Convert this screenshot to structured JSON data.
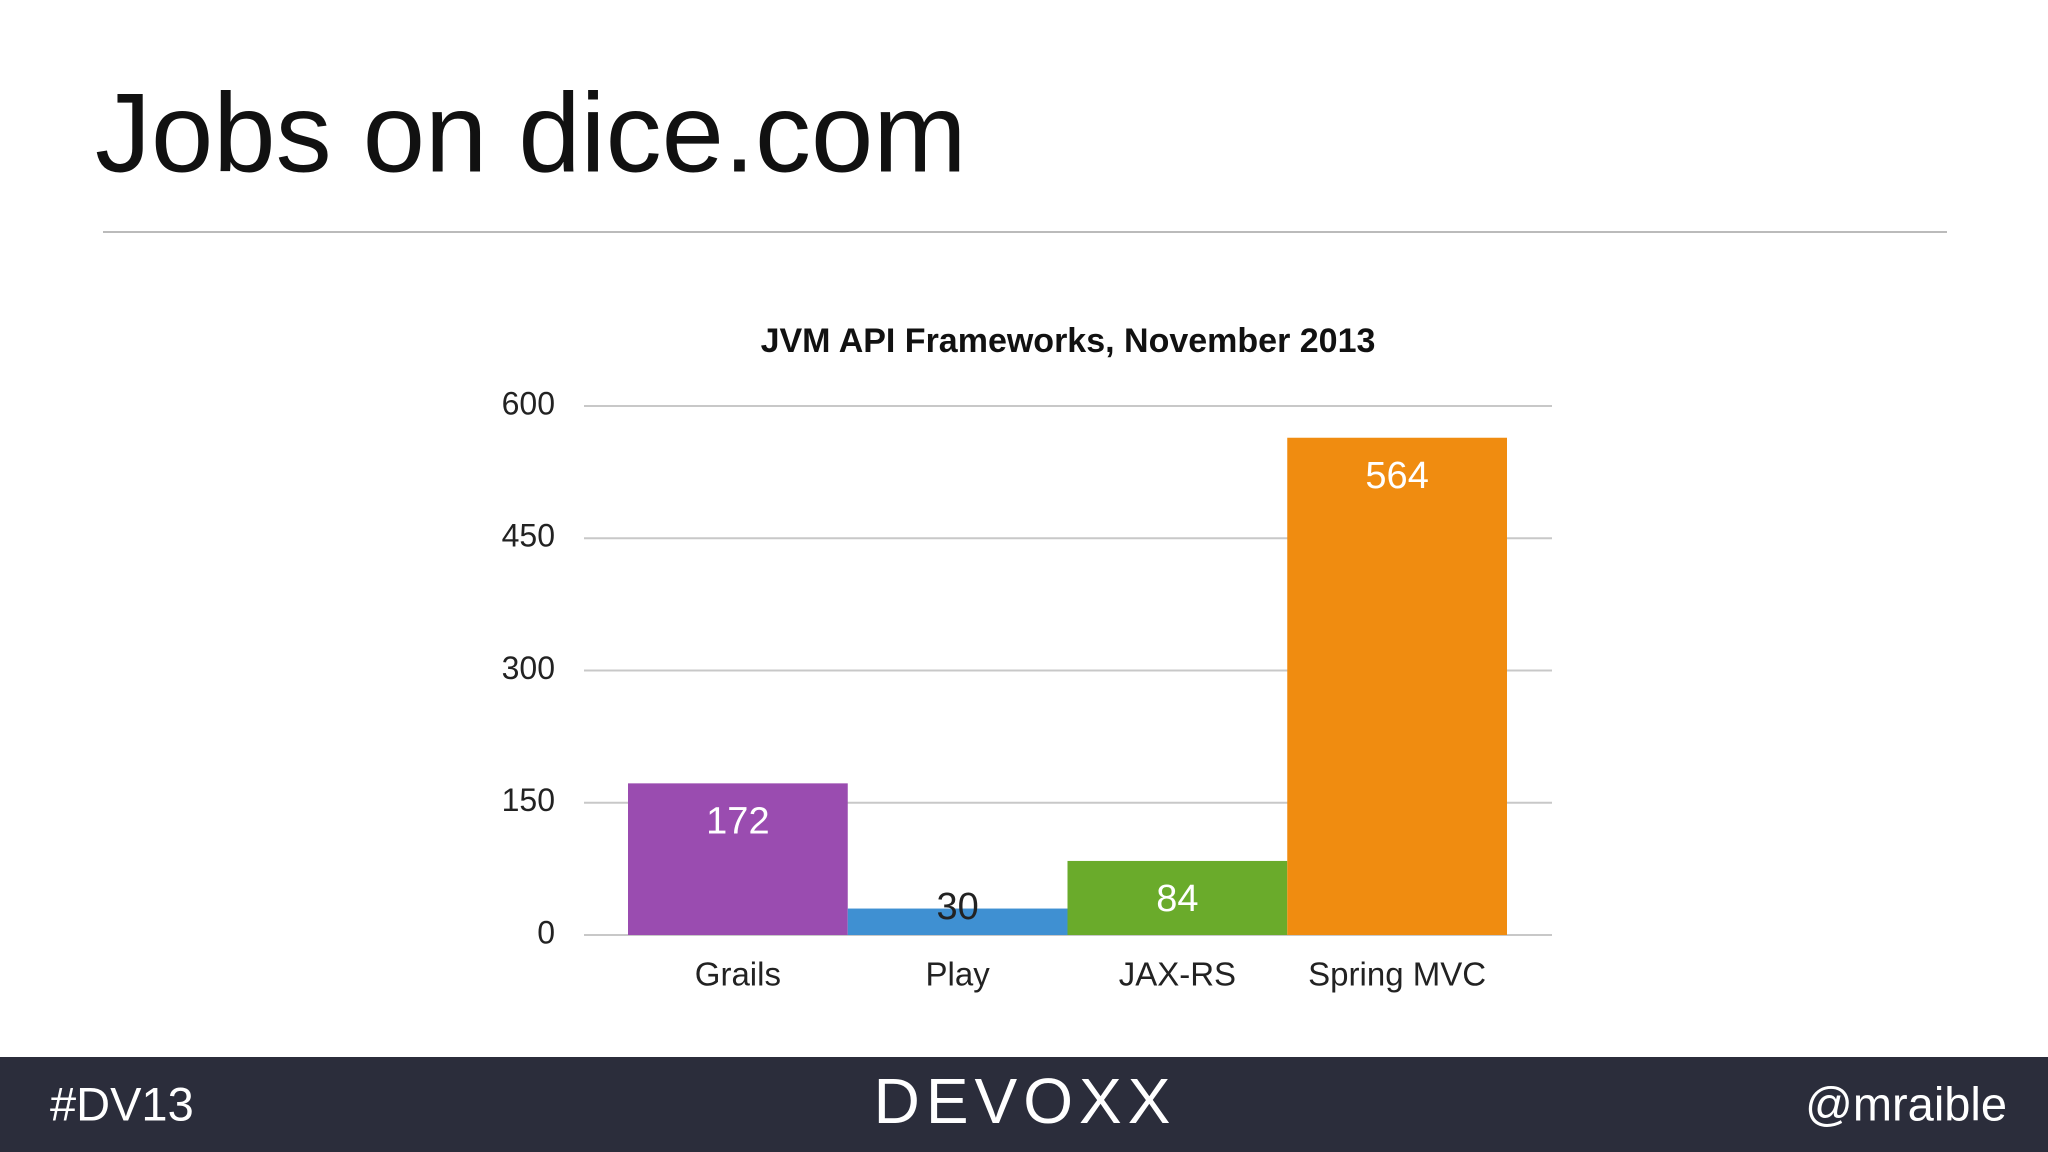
{
  "slide": {
    "title": "Jobs on dice.com",
    "footer_left": "#DV13",
    "logo": "DEVOXX",
    "footer_right": "@mraible"
  },
  "chart_data": {
    "type": "bar",
    "title": "JVM API Frameworks, November 2013",
    "categories": [
      "Grails",
      "Play",
      "JAX-RS",
      "Spring MVC"
    ],
    "values": [
      172,
      30,
      84,
      564
    ],
    "colors": [
      "#9a4cb0",
      "#3f90d2",
      "#6aab2b",
      "#f08c10"
    ],
    "ylim": [
      0,
      600
    ],
    "yticks": [
      0,
      150,
      300,
      450,
      600
    ],
    "grid": true
  }
}
